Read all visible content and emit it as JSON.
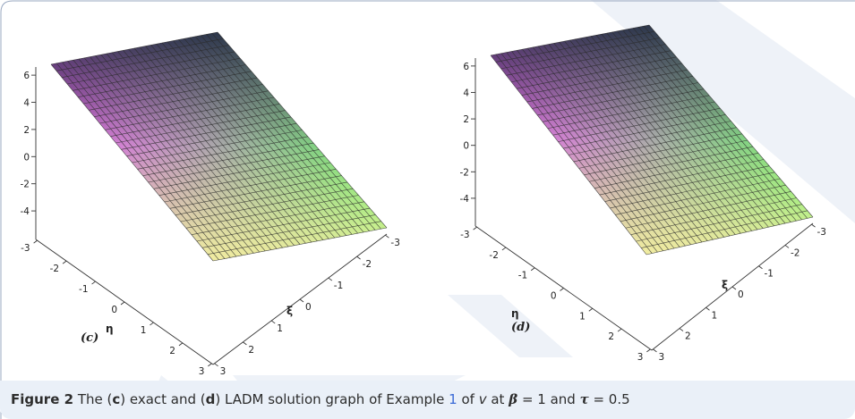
{
  "figure": {
    "caption": {
      "label": "Figure 2",
      "text_1": " The (",
      "c": "c",
      "text_2": ") exact and (",
      "d": "d",
      "text_3": ") LADM solution graph of Example ",
      "example_ref": "1",
      "text_4": " of ",
      "var_v": "v",
      "text_5": " at ",
      "beta": "β",
      "text_6": " = 1 and ",
      "tau": "τ",
      "text_7": " = 0.5"
    },
    "colors": {
      "magenta": "#ee66ee",
      "green": "#66ee66",
      "dark": "#1e2a40",
      "cream": "#f4f0a0",
      "caption_band": "#eaf0f8",
      "link": "#3a6ad6"
    }
  },
  "chart_data": [
    {
      "type": "surface",
      "panel_label": "(c)",
      "z_ticks": [
        "6",
        "4",
        "2",
        "0",
        "-2",
        "-4"
      ],
      "eta_ticks": [
        "-3",
        "-2",
        "-1",
        "0",
        "1",
        "2",
        "3"
      ],
      "xi_ticks": [
        "-3",
        "-2",
        "-1",
        "0",
        "1",
        "2",
        "3"
      ],
      "eta_label": "η",
      "xi_label": "ξ",
      "grid_lines": 30
    },
    {
      "type": "surface",
      "panel_label": "(d)",
      "z_ticks": [
        "6",
        "4",
        "2",
        "0",
        "-2",
        "-4"
      ],
      "eta_ticks": [
        "-3",
        "-2",
        "-1",
        "0",
        "1",
        "2",
        "3"
      ],
      "xi_ticks": [
        "-3",
        "-2",
        "-1",
        "0",
        "1",
        "2",
        "3"
      ],
      "eta_label": "η",
      "xi_label": "ξ",
      "grid_lines": 30
    }
  ]
}
